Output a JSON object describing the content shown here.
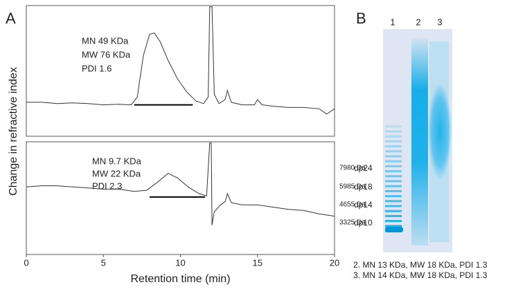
{
  "chart_data": [
    {
      "type": "line",
      "panel": "A",
      "ylabel": "Change in refractive index",
      "color": "#333333",
      "xlim": [
        0,
        20
      ],
      "ylim": [
        0,
        100
      ],
      "x": [
        0,
        1,
        2,
        3,
        4,
        5,
        6,
        6.8,
        7.2,
        7.6,
        8,
        8.3,
        8.7,
        9.2,
        9.8,
        10.4,
        11,
        11.5,
        11.8,
        11.9,
        12.05,
        12.2,
        12.5,
        12.9,
        13.05,
        13.3,
        14,
        14.8,
        15,
        15.3,
        16,
        17,
        18,
        19,
        19.5,
        20
      ],
      "values": [
        26,
        26,
        25,
        25.5,
        25,
        24,
        24.5,
        24,
        30,
        62,
        78,
        79,
        72,
        58,
        44,
        34,
        27,
        25,
        30,
        99,
        99,
        32,
        25,
        28,
        35,
        26,
        24,
        24,
        28,
        24,
        23,
        22,
        22,
        21,
        17,
        21
      ],
      "integration_bar": {
        "x": [
          7,
          10.8
        ],
        "y": 24
      },
      "annotations": [
        "MN 49 KDa",
        "MW 76 KDa",
        "PDI  1.6"
      ]
    },
    {
      "type": "line",
      "xlabel": "Retention time (min)",
      "color": "#333333",
      "xlim": [
        0,
        20
      ],
      "ylim": [
        0,
        100
      ],
      "xticks": [
        0,
        5,
        10,
        15,
        20
      ],
      "x": [
        0,
        1,
        2,
        3,
        4,
        5,
        6,
        7,
        7.8,
        8.5,
        9.2,
        9.8,
        10.5,
        11.2,
        11.7,
        11.9,
        12.0,
        12.05,
        12.2,
        12.6,
        12.9,
        13.05,
        13.3,
        14,
        15,
        16,
        17,
        18,
        19,
        20
      ],
      "values": [
        60,
        61,
        61,
        60,
        59,
        58,
        58,
        56,
        57,
        64,
        72,
        68,
        60,
        54,
        52,
        99,
        99,
        26,
        38,
        44,
        47,
        54,
        46,
        44,
        44,
        42,
        40,
        39,
        36,
        34
      ],
      "integration_bar": {
        "x": [
          8,
          11.6
        ],
        "y": 51
      },
      "annotations": [
        "MN 9.7 KDa",
        "MW 22 KDa",
        "PDI  2.3"
      ]
    },
    {
      "type": "gel",
      "panel": "B",
      "lanes": [
        "1",
        "2",
        "3"
      ],
      "ladder": [
        {
          "mass": "7980 Da",
          "dp": "dp24"
        },
        {
          "mass": "5985 Da",
          "dp": "dp18"
        },
        {
          "mass": "4655 Da",
          "dp": "dp14"
        },
        {
          "mass": "3325 Da",
          "dp": "dp10"
        }
      ],
      "notes": [
        "2.  MN 13 KDa, MW 18 KDa, PDI 1.3",
        "3.  MN 14 KDa, MW 18 KDa, PDI 1.3"
      ]
    }
  ]
}
